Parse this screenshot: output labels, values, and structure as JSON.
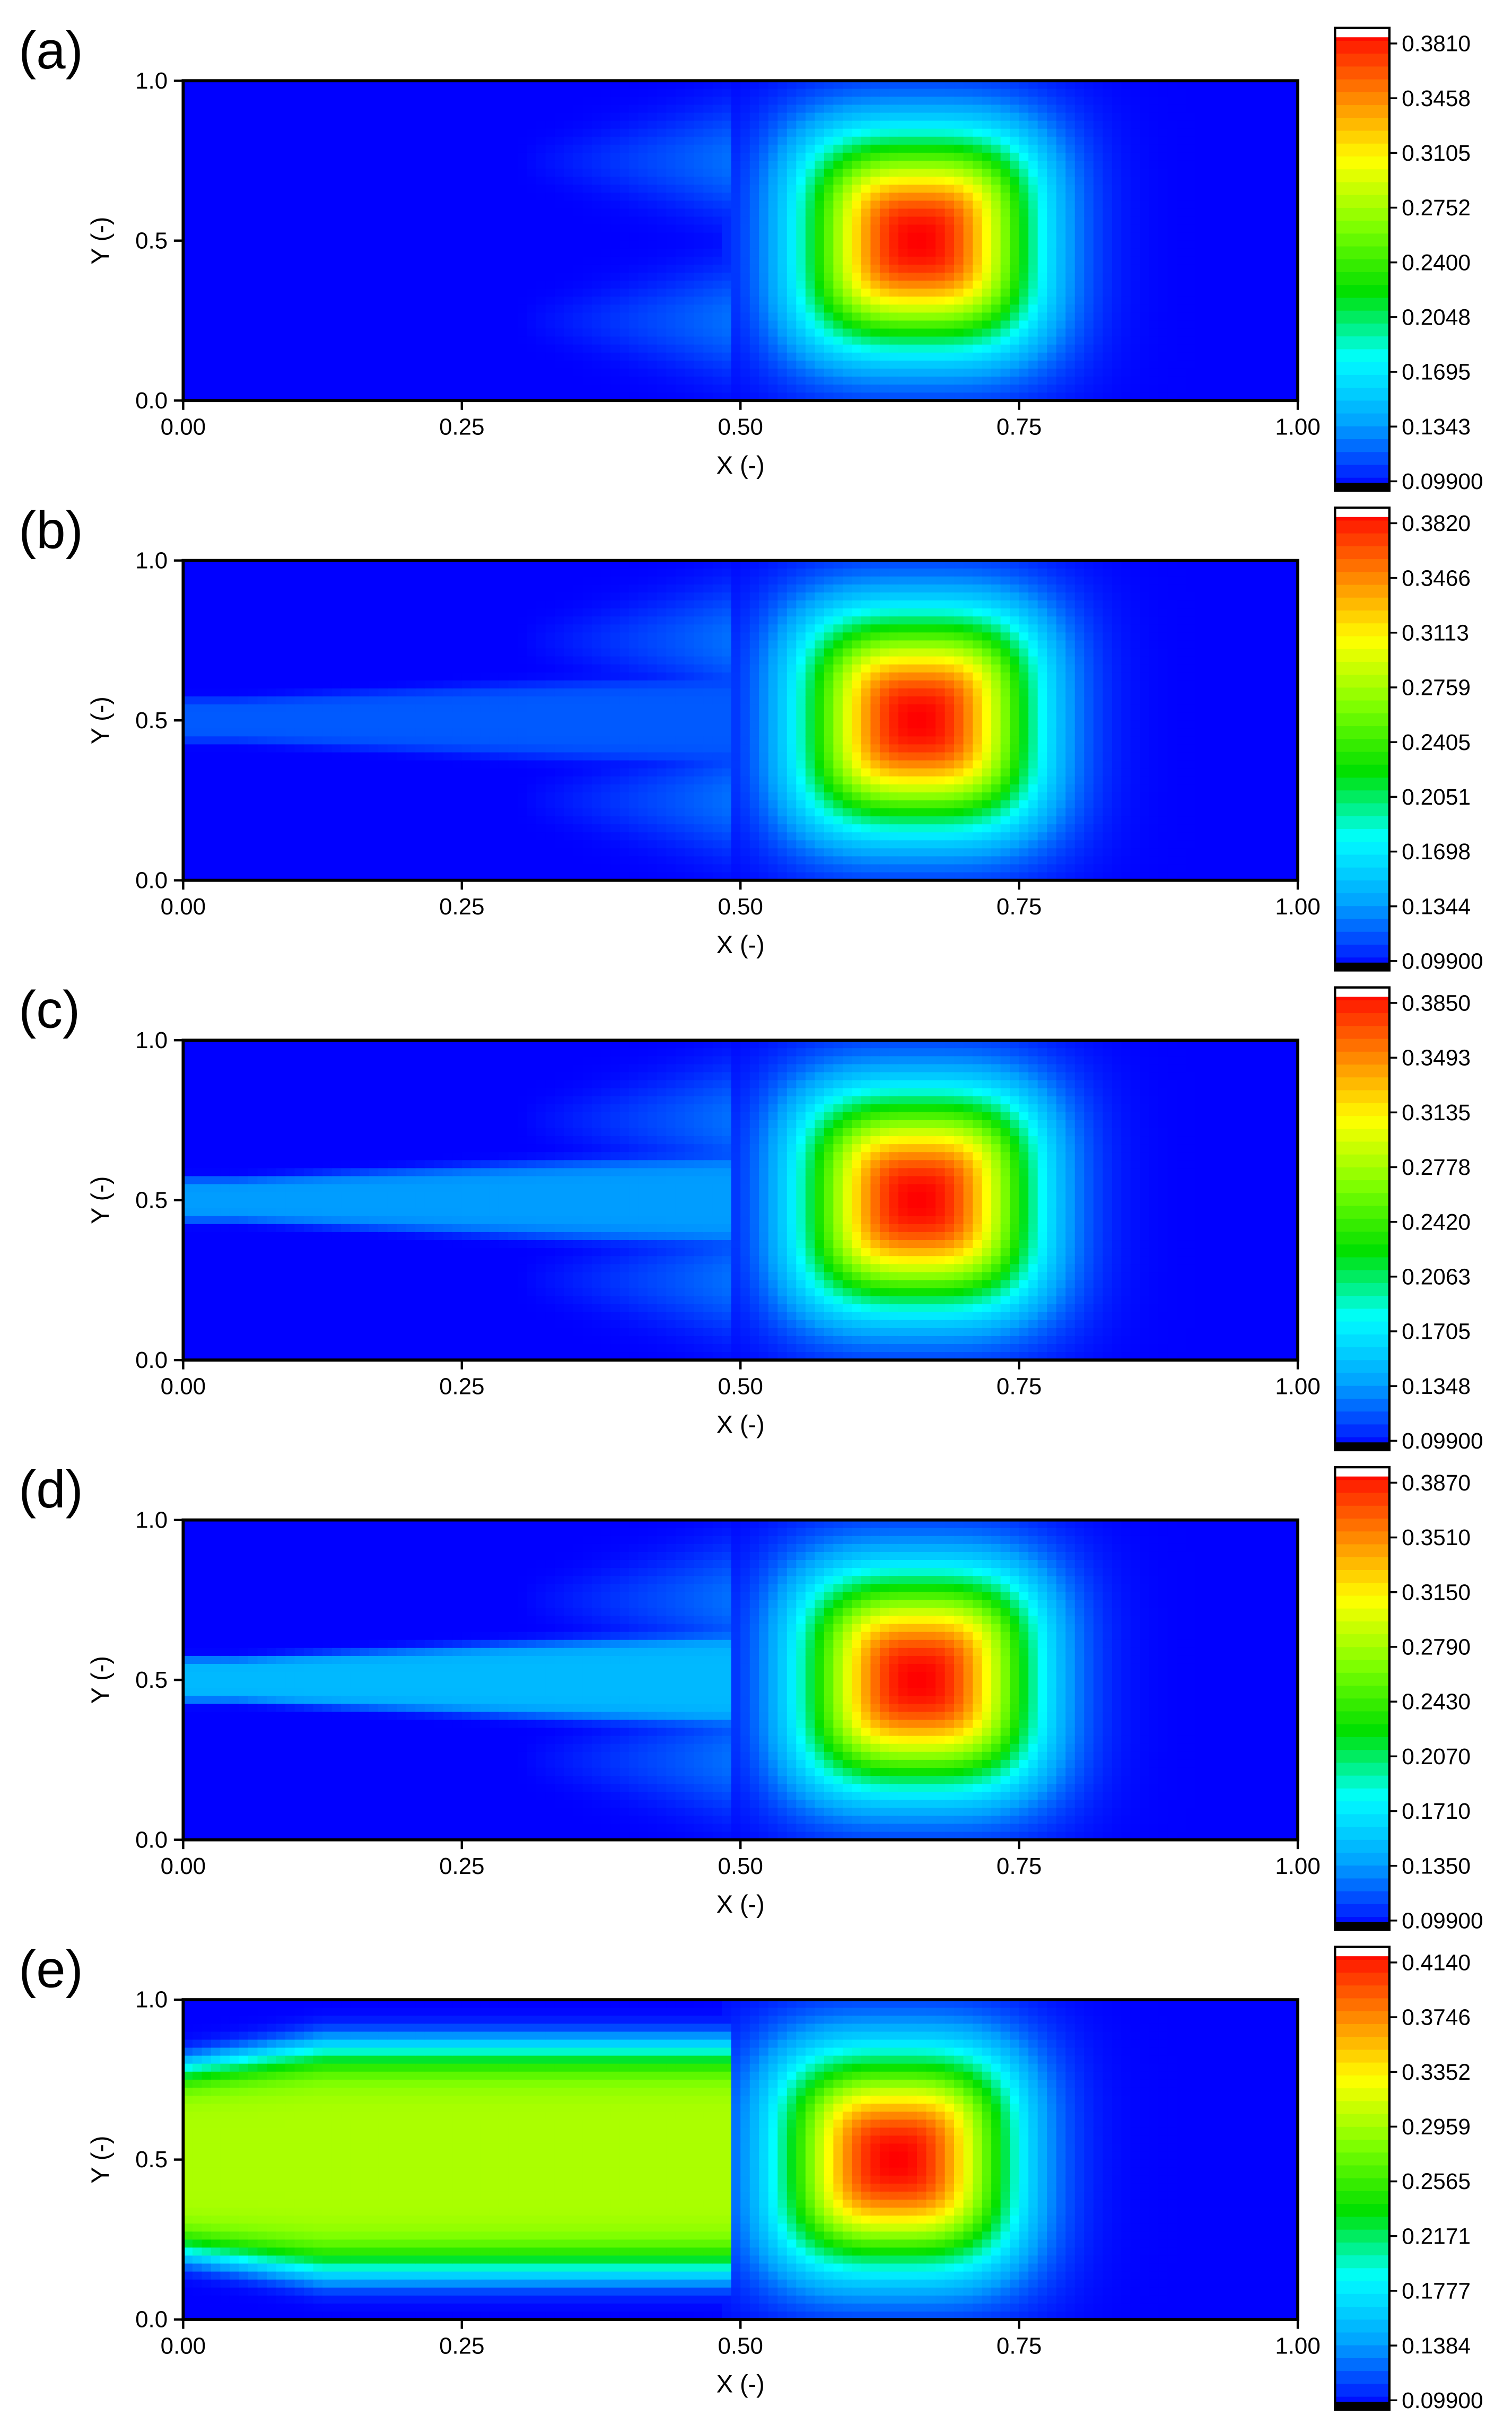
{
  "figure": {
    "panels": [
      {
        "label": "(a)"
      },
      {
        "label": "(b)"
      },
      {
        "label": "(c)"
      },
      {
        "label": "(d)"
      },
      {
        "label": "(e)"
      }
    ]
  },
  "chart_data": [
    {
      "type": "heatmap",
      "panel_label": "(a)",
      "title": "",
      "xlabel": "X (-)",
      "ylabel": "Y (-)",
      "xlim": [
        0,
        1
      ],
      "ylim": [
        0,
        1
      ],
      "xticks": [
        "0.00",
        "0.25",
        "0.50",
        "0.75",
        "1.00"
      ],
      "yticks": [
        "0.0",
        "0.5",
        "1.0"
      ],
      "colorbar": {
        "min": 0.099,
        "max": 0.381,
        "tick_labels": [
          "0.3810",
          "0.3458",
          "0.3105",
          "0.2752",
          "0.2400",
          "0.2048",
          "0.1695",
          "0.1343",
          "0.09900"
        ]
      },
      "colormap": [
        "#0000ff",
        "#00a0ff",
        "#00ffff",
        "#00e000",
        "#80ff00",
        "#ffff00",
        "#ff8000",
        "#ff0000"
      ],
      "peak": {
        "x": 0.66,
        "y": 0.5,
        "value": 0.381
      },
      "grid": false
    },
    {
      "type": "heatmap",
      "panel_label": "(b)",
      "title": "",
      "xlabel": "X (-)",
      "ylabel": "Y (-)",
      "xlim": [
        0,
        1
      ],
      "ylim": [
        0,
        1
      ],
      "xticks": [
        "0.00",
        "0.25",
        "0.50",
        "0.75",
        "1.00"
      ],
      "yticks": [
        "0.0",
        "0.5",
        "1.0"
      ],
      "colorbar": {
        "min": 0.099,
        "max": 0.382,
        "tick_labels": [
          "0.3820",
          "0.3466",
          "0.3113",
          "0.2759",
          "0.2405",
          "0.2051",
          "0.1698",
          "0.1344",
          "0.09900"
        ]
      },
      "colormap": [
        "#0000ff",
        "#00a0ff",
        "#00ffff",
        "#00e000",
        "#80ff00",
        "#ffff00",
        "#ff8000",
        "#ff0000"
      ],
      "peak": {
        "x": 0.66,
        "y": 0.5,
        "value": 0.382
      },
      "grid": false
    },
    {
      "type": "heatmap",
      "panel_label": "(c)",
      "title": "",
      "xlabel": "X (-)",
      "ylabel": "Y (-)",
      "xlim": [
        0,
        1
      ],
      "ylim": [
        0,
        1
      ],
      "xticks": [
        "0.00",
        "0.25",
        "0.50",
        "0.75",
        "1.00"
      ],
      "yticks": [
        "0.0",
        "0.5",
        "1.0"
      ],
      "colorbar": {
        "min": 0.099,
        "max": 0.385,
        "tick_labels": [
          "0.3850",
          "0.3493",
          "0.3135",
          "0.2778",
          "0.2420",
          "0.2063",
          "0.1705",
          "0.1348",
          "0.09900"
        ]
      },
      "colormap": [
        "#0000ff",
        "#00a0ff",
        "#00ffff",
        "#00e000",
        "#80ff00",
        "#ffff00",
        "#ff8000",
        "#ff0000"
      ],
      "peak": {
        "x": 0.66,
        "y": 0.5,
        "value": 0.385
      },
      "grid": false
    },
    {
      "type": "heatmap",
      "panel_label": "(d)",
      "title": "",
      "xlabel": "X (-)",
      "ylabel": "Y (-)",
      "xlim": [
        0,
        1
      ],
      "ylim": [
        0,
        1
      ],
      "xticks": [
        "0.00",
        "0.25",
        "0.50",
        "0.75",
        "1.00"
      ],
      "yticks": [
        "0.0",
        "0.5",
        "1.0"
      ],
      "colorbar": {
        "min": 0.099,
        "max": 0.387,
        "tick_labels": [
          "0.3870",
          "0.3510",
          "0.3150",
          "0.2790",
          "0.2430",
          "0.2070",
          "0.1710",
          "0.1350",
          "0.09900"
        ]
      },
      "colormap": [
        "#0000ff",
        "#00a0ff",
        "#00ffff",
        "#00e000",
        "#80ff00",
        "#ffff00",
        "#ff8000",
        "#ff0000"
      ],
      "peak": {
        "x": 0.66,
        "y": 0.5,
        "value": 0.387
      },
      "grid": false
    },
    {
      "type": "heatmap",
      "panel_label": "(e)",
      "title": "",
      "xlabel": "X (-)",
      "ylabel": "Y (-)",
      "xlim": [
        0,
        1
      ],
      "ylim": [
        0,
        1
      ],
      "xticks": [
        "0.00",
        "0.25",
        "0.50",
        "0.75",
        "1.00"
      ],
      "yticks": [
        "0.0",
        "0.5",
        "1.0"
      ],
      "colorbar": {
        "min": 0.099,
        "max": 0.414,
        "tick_labels": [
          "0.4140",
          "0.3746",
          "0.3352",
          "0.2959",
          "0.2565",
          "0.2171",
          "0.1777",
          "0.1384",
          "0.09900"
        ]
      },
      "colormap": [
        "#0000ff",
        "#00a0ff",
        "#00ffff",
        "#00e000",
        "#80ff00",
        "#ffff00",
        "#ff8000",
        "#ff0000"
      ],
      "peak": {
        "x": 0.64,
        "y": 0.5,
        "value": 0.414
      },
      "grid": false
    }
  ]
}
